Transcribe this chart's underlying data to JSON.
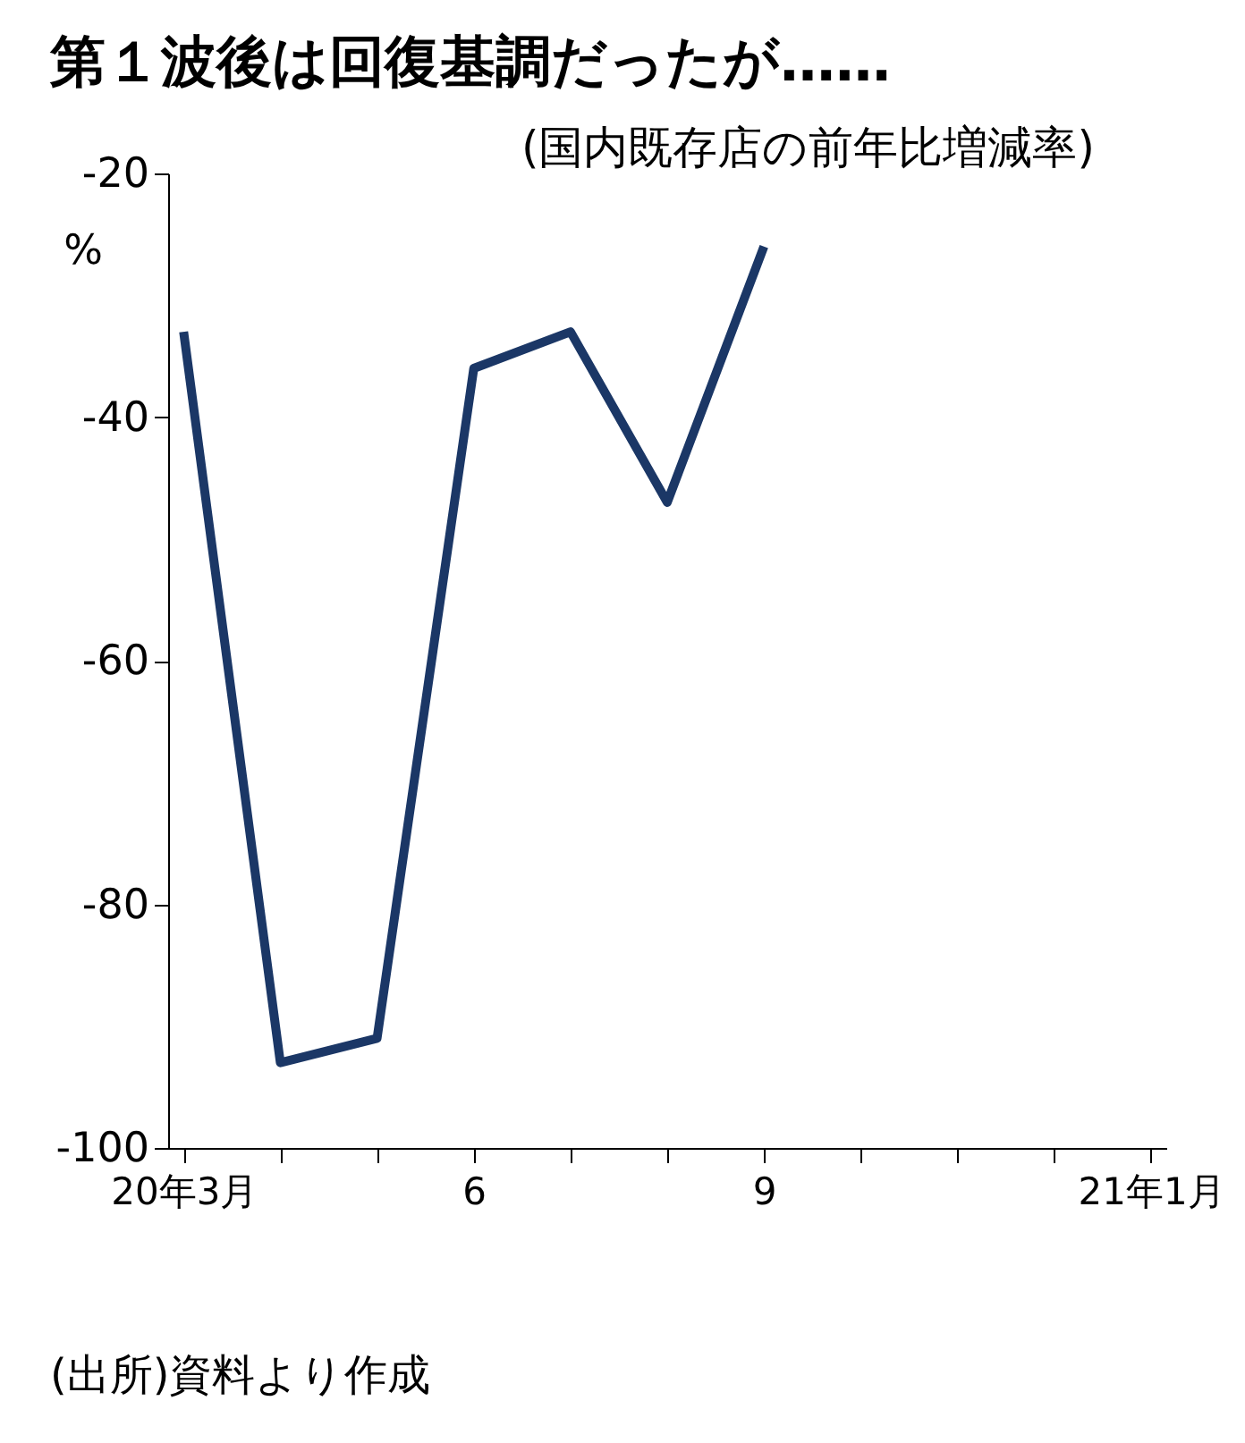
{
  "chart_data": {
    "type": "line",
    "title": "第１波後は回復基調だったが……",
    "subtitle": "(国内既存店の前年比増減率)",
    "ylabel": "%",
    "categories": [
      "20年3月",
      null,
      null,
      "6",
      null,
      null,
      "9",
      null,
      null,
      null,
      "21年1月"
    ],
    "series": [
      {
        "color": "#1b3766",
        "values": [
          -33,
          -93,
          -91,
          -36,
          -33,
          -47,
          -26,
          null,
          null,
          null,
          null
        ]
      }
    ],
    "ylim": [
      -100,
      -20
    ],
    "yticks": [
      -100,
      -80,
      -60,
      -40,
      -20
    ],
    "grid": false,
    "legend": false,
    "marker": "none",
    "line_style": "solid",
    "annotations": [
      "(出所)資料より作成"
    ]
  }
}
